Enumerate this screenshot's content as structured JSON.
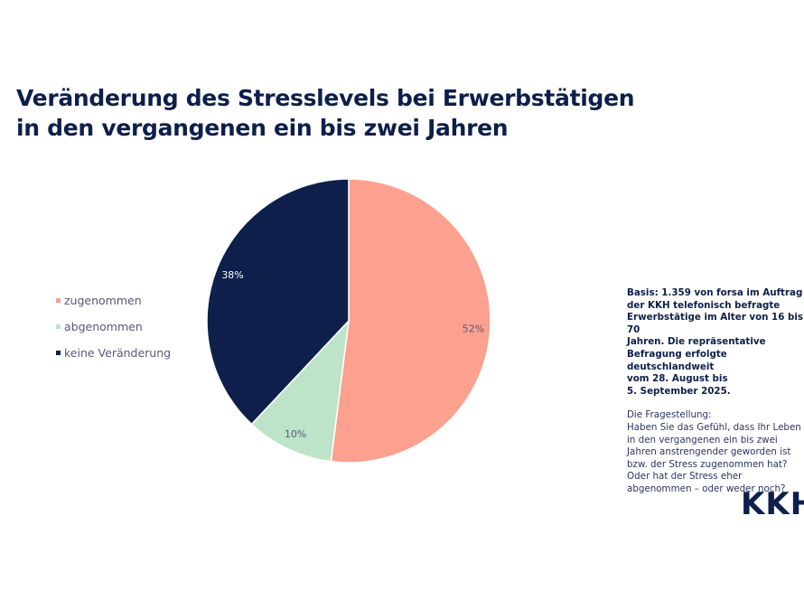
{
  "chart_data": {
    "type": "pie",
    "title": [
      "Veränderung des Stresslevels bei Erwerbstätigen",
      "in den vergangenen ein bis zwei Jahren"
    ],
    "categories": [
      "zugenommen",
      "abgenommen",
      "keine Veränderung"
    ],
    "values": [
      52,
      10,
      38
    ],
    "data_labels": [
      "52%",
      "10%",
      "38%"
    ],
    "colors": [
      "#fca08f",
      "#bde3c8",
      "#0d1f4a"
    ],
    "label_colors": [
      "#55597a",
      "#55597a",
      "#ffffff"
    ],
    "legend_placement": "left"
  },
  "note": {
    "basis": [
      "Basis: 1.359 von forsa im Auftrag",
      "der KKH telefonisch befragte",
      "Erwerbstätige im Alter von 16 bis 70",
      "Jahren. Die repräsentative",
      "Befragung erfolgte deutschlandweit",
      "vom 28. August bis",
      "5. September 2025."
    ],
    "question": [
      "Die Fragestellung:",
      "Haben Sie das Gefühl, dass Ihr Leben",
      "in den vergangenen ein bis zwei",
      "Jahren anstrengender geworden ist",
      "bzw. der Stress zugenommen hat?",
      "Oder hat der Stress eher",
      "abgenommen – oder weder noch?"
    ]
  },
  "logo": "KKH"
}
